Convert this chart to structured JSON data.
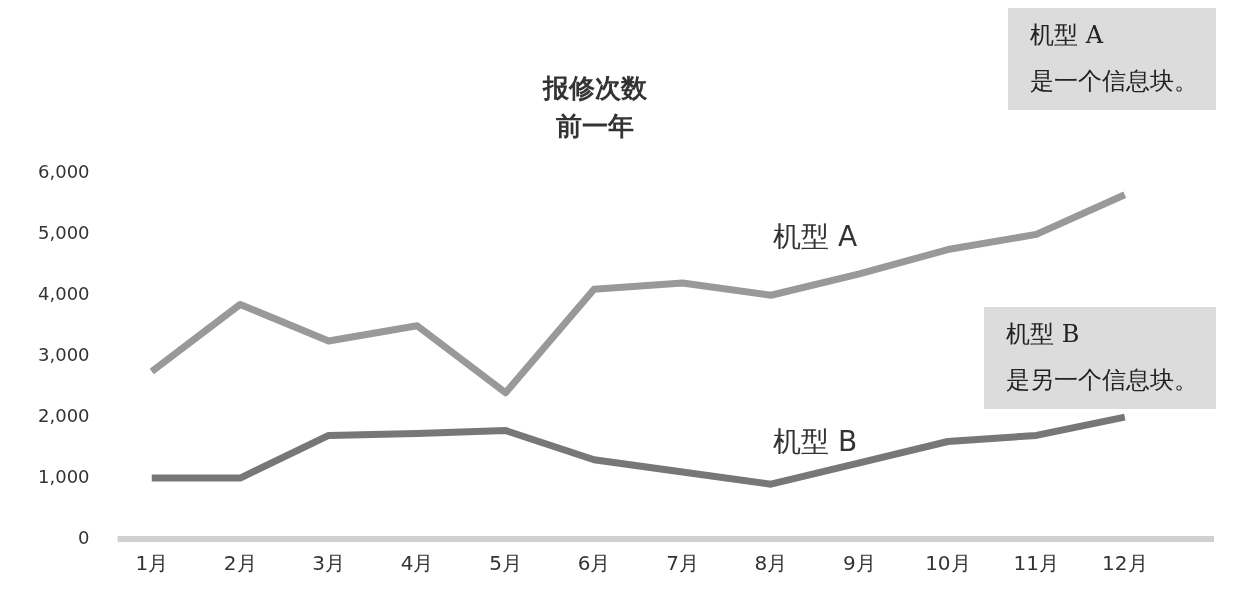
{
  "chart_data": {
    "type": "line",
    "title": "报修次数",
    "subtitle": "前一年",
    "categories": [
      "1月",
      "2月",
      "3月",
      "4月",
      "5月",
      "6月",
      "7月",
      "8月",
      "9月",
      "10月",
      "11月",
      "12月"
    ],
    "series": [
      {
        "name": "机型 A",
        "color": "#999999",
        "values": [
          2750,
          3850,
          3250,
          3500,
          2400,
          4100,
          4200,
          4000,
          4350,
          4750,
          5000,
          5650
        ]
      },
      {
        "name": "机型 B",
        "color": "#777777",
        "values": [
          1000,
          1000,
          1700,
          1730,
          1780,
          1300,
          1100,
          900,
          1250,
          1600,
          1700,
          2000
        ]
      }
    ],
    "ylim": [
      0,
      6000
    ],
    "yticks": [
      0,
      {
        "value": 1000,
        "label": "1,000"
      },
      {
        "value": 2000,
        "label": "2,000"
      },
      {
        "value": 3000,
        "label": "3,000"
      },
      {
        "value": 4000,
        "label": "4,000"
      },
      {
        "value": 5000,
        "label": "5,000"
      },
      {
        "value": 6000,
        "label": "6,000"
      }
    ],
    "annotations": [
      "机型 A\n是一个信息块。",
      "机型 B\n是另一个信息块。"
    ],
    "grid": false,
    "legend": false,
    "marker": "none",
    "line_style": "solid"
  }
}
